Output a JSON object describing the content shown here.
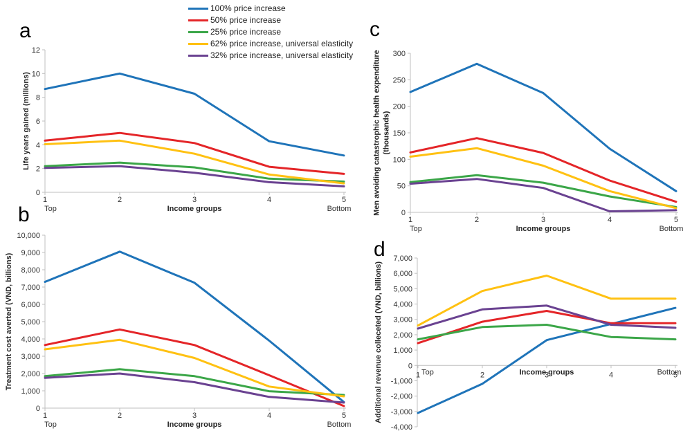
{
  "legend": {
    "items": [
      {
        "label": "100% price increase",
        "color": "#1F74B9"
      },
      {
        "label": "50% price increase",
        "color": "#E42528"
      },
      {
        "label": "25% price increase",
        "color": "#3BA648"
      },
      {
        "label": "62% price increase, universal elasticity",
        "color": "#FFC112"
      },
      {
        "label": "32% price increase, universal elasticity",
        "color": "#6A4291"
      }
    ]
  },
  "chart_data": [
    {
      "type": "line",
      "panel_letter": "a",
      "ylabel": "Life years gained (millions)",
      "xlabel": "Income groups",
      "x_left_label": "Top",
      "x_right_label": "Bottom",
      "x": [
        1,
        2,
        3,
        4,
        5
      ],
      "x_tick_labels": [
        "1",
        "2",
        "3",
        "4",
        "5"
      ],
      "ylim": [
        0,
        12
      ],
      "ytick_step": 2,
      "ytick_labels": [
        "0",
        "2",
        "4",
        "6",
        "8",
        "10",
        "12"
      ],
      "grid": false,
      "legend_position": "top-center-shared",
      "series": [
        {
          "name": "100% price increase",
          "color": "#1F74B9",
          "values": [
            8.7,
            10.0,
            8.3,
            4.3,
            3.1
          ]
        },
        {
          "name": "50% price increase",
          "color": "#E42528",
          "values": [
            4.35,
            5.0,
            4.15,
            2.15,
            1.55
          ]
        },
        {
          "name": "25% price increase",
          "color": "#3BA648",
          "values": [
            2.2,
            2.5,
            2.1,
            1.15,
            0.9
          ]
        },
        {
          "name": "62% price increase, universal elasticity",
          "color": "#FFC112",
          "values": [
            4.05,
            4.35,
            3.25,
            1.5,
            0.75
          ]
        },
        {
          "name": "32% price increase, universal elasticity",
          "color": "#6A4291",
          "values": [
            2.05,
            2.2,
            1.65,
            0.85,
            0.5
          ]
        }
      ]
    },
    {
      "type": "line",
      "panel_letter": "b",
      "ylabel": "Treatment cost averted (VND, billions)",
      "xlabel": "Income groups",
      "x_left_label": "Top",
      "x_right_label": "Bottom",
      "x": [
        1,
        2,
        3,
        4,
        5
      ],
      "x_tick_labels": [
        "1",
        "2",
        "3",
        "4",
        "5"
      ],
      "ylim": [
        0,
        10000
      ],
      "ytick_step": 1000,
      "ytick_labels": [
        "0",
        "1,000",
        "2,000",
        "3,000",
        "4,000",
        "5,000",
        "6,000",
        "7,000",
        "8,000",
        "9,000",
        "10,000"
      ],
      "grid": false,
      "series": [
        {
          "name": "100% price increase",
          "color": "#1F74B9",
          "values": [
            7300,
            9050,
            7250,
            3900,
            350
          ]
        },
        {
          "name": "50% price increase",
          "color": "#E42528",
          "values": [
            3650,
            4550,
            3650,
            1900,
            120
          ]
        },
        {
          "name": "25% price increase",
          "color": "#3BA648",
          "values": [
            1850,
            2250,
            1850,
            975,
            760
          ]
        },
        {
          "name": "62% price increase, universal elasticity",
          "color": "#FFC112",
          "values": [
            3400,
            3950,
            2900,
            1250,
            680
          ]
        },
        {
          "name": "32% price increase, universal elasticity",
          "color": "#6A4291",
          "values": [
            1750,
            2000,
            1500,
            650,
            320
          ]
        }
      ]
    },
    {
      "type": "line",
      "panel_letter": "c",
      "ylabel": "Men avoiding catastrophic health expenditure (thousands)",
      "xlabel": "Income groups",
      "x_left_label": "Top",
      "x_right_label": "Bottom",
      "x": [
        1,
        2,
        3,
        4,
        5
      ],
      "x_tick_labels": [
        "1",
        "2",
        "3",
        "4",
        "5"
      ],
      "ylim": [
        0,
        300
      ],
      "ytick_step": 50,
      "ytick_labels": [
        "0",
        "50",
        "100",
        "150",
        "200",
        "250",
        "300"
      ],
      "grid": false,
      "series": [
        {
          "name": "100% price increase",
          "color": "#1F74B9",
          "values": [
            227,
            280,
            225,
            120,
            40
          ]
        },
        {
          "name": "50% price increase",
          "color": "#E42528",
          "values": [
            113,
            140,
            112,
            60,
            20
          ]
        },
        {
          "name": "25% price increase",
          "color": "#3BA648",
          "values": [
            57,
            70,
            56,
            30,
            10
          ]
        },
        {
          "name": "62% price increase, universal elasticity",
          "color": "#FFC112",
          "values": [
            105,
            121,
            88,
            40,
            8
          ]
        },
        {
          "name": "32% price increase, universal elasticity",
          "color": "#6A4291",
          "values": [
            54,
            63,
            46,
            2,
            4
          ]
        }
      ]
    },
    {
      "type": "line",
      "panel_letter": "d",
      "ylabel": "Additional revenue colleceted (VND, billions)",
      "xlabel": "Income groups",
      "x_left_label": "Top",
      "x_right_label": "Bottom",
      "x": [
        1,
        2,
        3,
        4,
        5
      ],
      "x_tick_labels": [
        "1",
        "2",
        "3",
        "4",
        "5"
      ],
      "ylim": [
        -4000,
        7000
      ],
      "ytick_step": 1000,
      "ytick_labels": [
        "-4,000",
        "-3,000",
        "-2,000",
        "-1,000",
        "0",
        "1,000",
        "2,000",
        "3,000",
        "4,000",
        "5,000",
        "6,000",
        "7,000"
      ],
      "grid": false,
      "series": [
        {
          "name": "100% price increase",
          "color": "#1F74B9",
          "values": [
            -3100,
            -1200,
            1650,
            2700,
            3750
          ]
        },
        {
          "name": "50% price increase",
          "color": "#E42528",
          "values": [
            1450,
            2850,
            3550,
            2750,
            2750
          ]
        },
        {
          "name": "25% price increase",
          "color": "#3BA648",
          "values": [
            1700,
            2500,
            2650,
            1850,
            1700
          ]
        },
        {
          "name": "62% price increase, universal elasticity",
          "color": "#FFC112",
          "values": [
            2600,
            4850,
            5850,
            4350,
            4350
          ]
        },
        {
          "name": "32% price increase, universal elasticity",
          "color": "#6A4291",
          "values": [
            2400,
            3650,
            3900,
            2650,
            2450
          ]
        }
      ]
    }
  ]
}
